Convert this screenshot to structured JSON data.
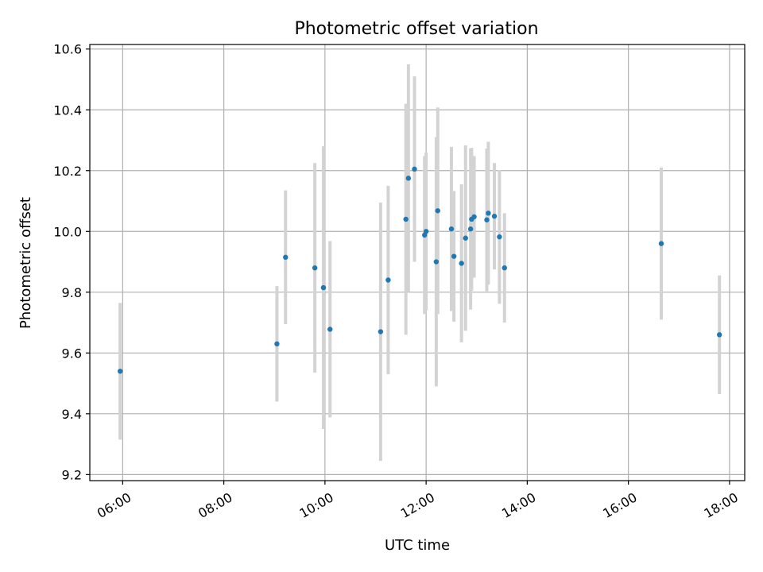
{
  "chart_data": {
    "type": "scatter",
    "title": "Photometric offset variation",
    "xlabel": "UTC time",
    "ylabel": "Photometric offset",
    "x_axis": {
      "type": "time",
      "unit": "hours",
      "range": [
        5.35,
        18.3
      ],
      "ticks": [
        6,
        8,
        10,
        12,
        14,
        16,
        18
      ],
      "tick_labels": [
        "06:00",
        "08:00",
        "10:00",
        "12:00",
        "14:00",
        "16:00",
        "18:00"
      ]
    },
    "y_axis": {
      "range": [
        9.18,
        10.615
      ],
      "ticks": [
        9.2,
        9.4,
        9.6,
        9.8,
        10.0,
        10.2,
        10.4,
        10.6
      ],
      "tick_labels": [
        "9.2",
        "9.4",
        "9.6",
        "9.8",
        "10.0",
        "10.2",
        "10.4",
        "10.6"
      ]
    },
    "grid": true,
    "marker_color": "#1f77b4",
    "errorbar_color": "#d3d3d3",
    "points": [
      {
        "x": 5.95,
        "y": 9.54,
        "err": 0.225
      },
      {
        "x": 9.05,
        "y": 9.63,
        "err": 0.19
      },
      {
        "x": 9.22,
        "y": 9.915,
        "err": 0.22
      },
      {
        "x": 9.8,
        "y": 9.88,
        "err": 0.345
      },
      {
        "x": 9.97,
        "y": 9.815,
        "err": 0.465
      },
      {
        "x": 10.1,
        "y": 9.678,
        "err": 0.29
      },
      {
        "x": 11.1,
        "y": 9.67,
        "err": 0.425
      },
      {
        "x": 11.25,
        "y": 9.84,
        "err": 0.31
      },
      {
        "x": 11.6,
        "y": 10.04,
        "err": 0.38
      },
      {
        "x": 11.65,
        "y": 10.175,
        "err": 0.375
      },
      {
        "x": 11.77,
        "y": 10.205,
        "err": 0.305
      },
      {
        "x": 11.97,
        "y": 9.988,
        "err": 0.26
      },
      {
        "x": 12.0,
        "y": 10.0,
        "err": 0.26
      },
      {
        "x": 12.2,
        "y": 9.9,
        "err": 0.41
      },
      {
        "x": 12.23,
        "y": 10.068,
        "err": 0.34
      },
      {
        "x": 12.5,
        "y": 10.008,
        "err": 0.27
      },
      {
        "x": 12.55,
        "y": 9.918,
        "err": 0.215
      },
      {
        "x": 12.7,
        "y": 9.895,
        "err": 0.26
      },
      {
        "x": 12.78,
        "y": 9.978,
        "err": 0.305
      },
      {
        "x": 12.88,
        "y": 10.008,
        "err": 0.265
      },
      {
        "x": 12.9,
        "y": 10.04,
        "err": 0.235
      },
      {
        "x": 12.95,
        "y": 10.048,
        "err": 0.2
      },
      {
        "x": 13.2,
        "y": 10.038,
        "err": 0.235
      },
      {
        "x": 13.23,
        "y": 10.06,
        "err": 0.235
      },
      {
        "x": 13.35,
        "y": 10.05,
        "err": 0.175
      },
      {
        "x": 13.45,
        "y": 9.982,
        "err": 0.22
      },
      {
        "x": 13.55,
        "y": 9.88,
        "err": 0.18
      },
      {
        "x": 16.65,
        "y": 9.96,
        "err": 0.25
      },
      {
        "x": 17.8,
        "y": 9.66,
        "err": 0.195
      }
    ]
  }
}
